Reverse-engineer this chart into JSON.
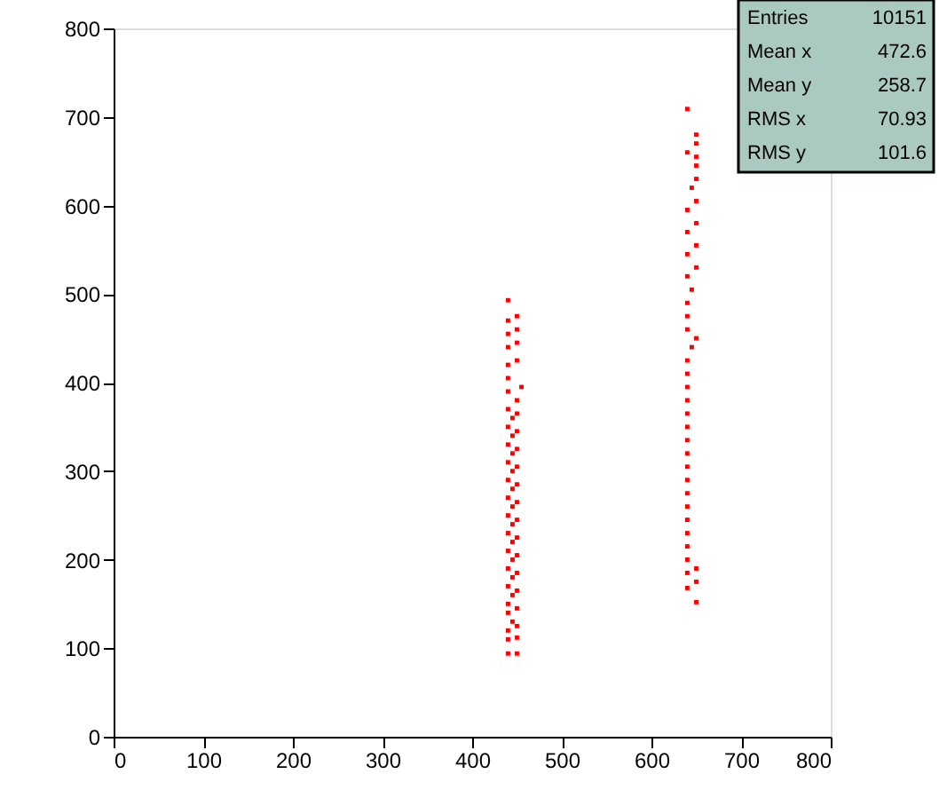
{
  "chart_data": {
    "type": "scatter",
    "xlim": [
      0,
      800
    ],
    "xticks": [
      0,
      100,
      200,
      300,
      400,
      500,
      600,
      700,
      800
    ],
    "ylim": [
      0,
      800
    ],
    "yticks": [
      0,
      100,
      200,
      300,
      400,
      500,
      600,
      700,
      800
    ],
    "grid": false,
    "marker": "square",
    "annotations": [
      "Entries  10151",
      "Mean x   472.6",
      "Mean y   258.7",
      "RMS x   70.93",
      "RMS y   101.6"
    ],
    "series": [
      {
        "color": "#ff0000",
        "x": [
          440,
          450,
          440,
          450,
          440,
          450,
          445,
          440,
          450,
          440,
          445,
          450,
          440,
          445,
          450,
          440,
          445,
          450,
          440,
          445,
          450,
          440,
          445,
          450,
          440,
          445,
          450,
          440,
          445,
          450,
          440,
          445,
          450,
          440,
          445,
          450,
          440,
          445,
          450,
          440,
          445,
          450,
          440,
          450,
          440,
          455,
          440,
          440,
          450,
          440,
          450,
          440,
          450,
          440,
          450,
          440,
          650,
          640,
          650,
          640,
          650,
          640,
          640,
          640,
          640,
          640,
          640,
          640,
          640,
          640,
          640,
          640,
          640,
          640,
          640,
          640,
          640,
          645,
          650,
          640,
          640,
          640,
          645,
          640,
          650,
          640,
          650,
          640,
          650,
          640,
          650,
          645,
          650,
          650,
          650,
          640,
          650,
          650,
          640
        ],
        "values": [
          94,
          94,
          110,
          112,
          120,
          125,
          130,
          140,
          145,
          150,
          160,
          165,
          170,
          180,
          185,
          190,
          200,
          205,
          210,
          220,
          225,
          230,
          240,
          245,
          250,
          260,
          265,
          270,
          280,
          285,
          290,
          300,
          305,
          310,
          320,
          325,
          330,
          340,
          345,
          350,
          360,
          365,
          370,
          380,
          390,
          395,
          405,
          420,
          425,
          440,
          445,
          455,
          460,
          470,
          475,
          493,
          152,
          168,
          175,
          185,
          190,
          200,
          215,
          230,
          245,
          260,
          275,
          290,
          305,
          320,
          335,
          350,
          365,
          380,
          395,
          410,
          425,
          440,
          450,
          460,
          475,
          490,
          505,
          520,
          530,
          545,
          555,
          570,
          580,
          595,
          605,
          620,
          630,
          645,
          655,
          660,
          670,
          680,
          709
        ]
      }
    ]
  }
}
